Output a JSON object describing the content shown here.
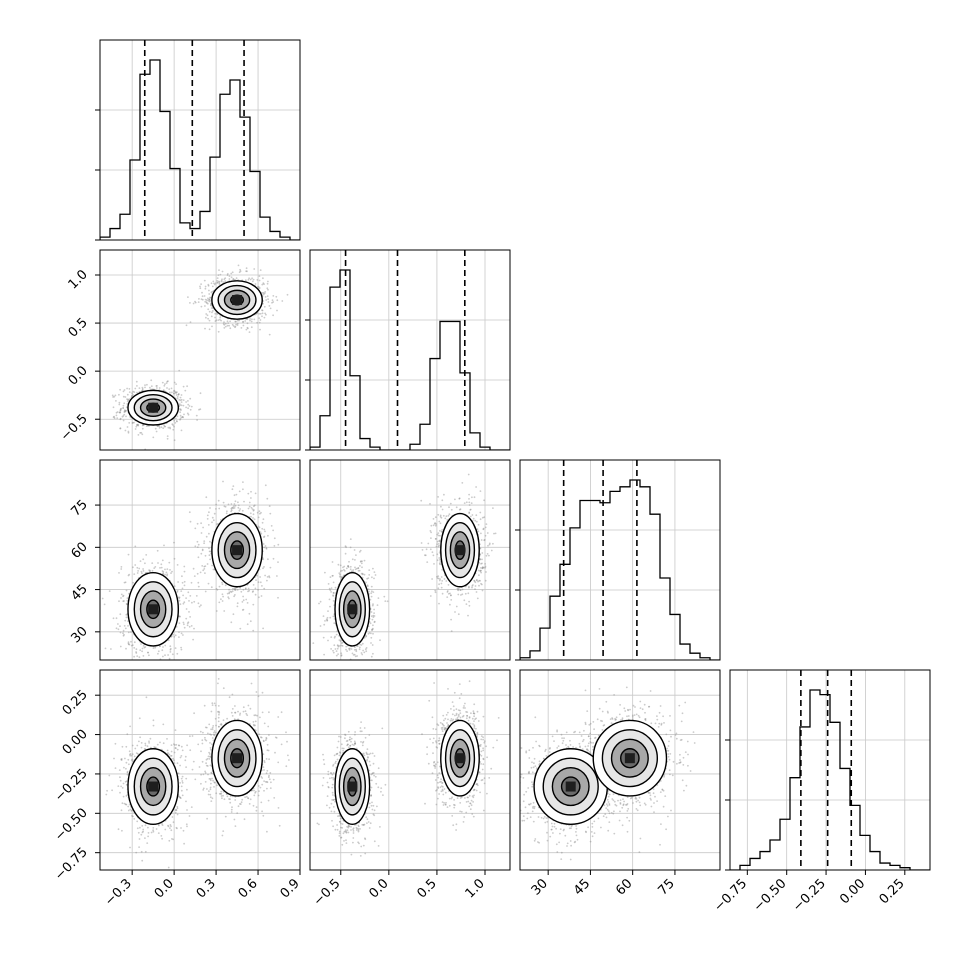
{
  "chart_data": {
    "type": "corner",
    "title": "",
    "parameters": [
      {
        "range": [
          -0.53,
          0.9
        ],
        "ticks": [
          "−0.3",
          "0.0",
          "0.3",
          "0.6",
          "0.9"
        ],
        "tick_values": [
          -0.3,
          0.0,
          0.3,
          0.6,
          0.9
        ]
      },
      {
        "range": [
          -0.82,
          1.26
        ],
        "ticks": [
          "−0.5",
          "0.0",
          "0.5",
          "1.0"
        ],
        "tick_values": [
          -0.5,
          0.0,
          0.5,
          1.0
        ]
      },
      {
        "range": [
          20,
          91
        ],
        "ticks": [
          "30",
          "45",
          "60",
          "75"
        ],
        "tick_values": [
          30,
          45,
          60,
          75
        ]
      },
      {
        "range": [
          -0.86,
          0.41
        ],
        "ticks": [
          "−0.75",
          "−0.50",
          "−0.25",
          "0.00",
          "0.25"
        ],
        "tick_values": [
          -0.75,
          -0.5,
          -0.25,
          0.0,
          0.25
        ]
      }
    ],
    "quantiles": [
      [
        -0.21,
        0.13,
        0.5
      ],
      [
        -0.45,
        0.09,
        0.79
      ],
      [
        35.5,
        49.5,
        61.5
      ],
      [
        -0.41,
        -0.24,
        -0.09
      ]
    ],
    "marginals": [
      {
        "bin_start": -0.53,
        "bin_width": 0.0715,
        "counts": [
          1,
          4,
          9,
          28,
          58,
          63,
          45,
          25,
          6,
          4,
          10,
          29,
          51,
          56,
          43,
          24,
          8,
          3,
          1,
          0
        ]
      },
      {
        "bin_start": -0.82,
        "bin_width": 0.104,
        "counts": [
          1,
          12,
          57,
          63,
          26,
          4,
          1,
          0,
          0,
          0,
          2,
          9,
          32,
          45,
          45,
          27,
          6,
          1,
          0,
          0
        ]
      },
      {
        "bin_start": 20,
        "bin_width": 3.55,
        "counts": [
          1,
          4,
          14,
          28,
          42,
          58,
          70,
          70,
          69,
          74,
          76,
          79,
          76,
          64,
          36,
          20,
          7,
          3,
          1,
          0
        ]
      },
      {
        "bin_start": -0.86,
        "bin_width": 0.0635,
        "counts": [
          0,
          2,
          5,
          8,
          13,
          22,
          40,
          62,
          78,
          76,
          64,
          44,
          28,
          15,
          8,
          3,
          2,
          1,
          0,
          0
        ]
      }
    ],
    "clusters": [
      {
        "mean": [
          -0.15,
          -0.38,
          38,
          -0.33
        ],
        "sd": [
          0.09,
          0.09,
          6.5,
          0.12
        ],
        "weight": 0.5
      },
      {
        "mean": [
          0.45,
          0.74,
          59,
          -0.15
        ],
        "sd": [
          0.09,
          0.1,
          6.5,
          0.12
        ],
        "weight": 0.5
      }
    ],
    "grid": true
  }
}
